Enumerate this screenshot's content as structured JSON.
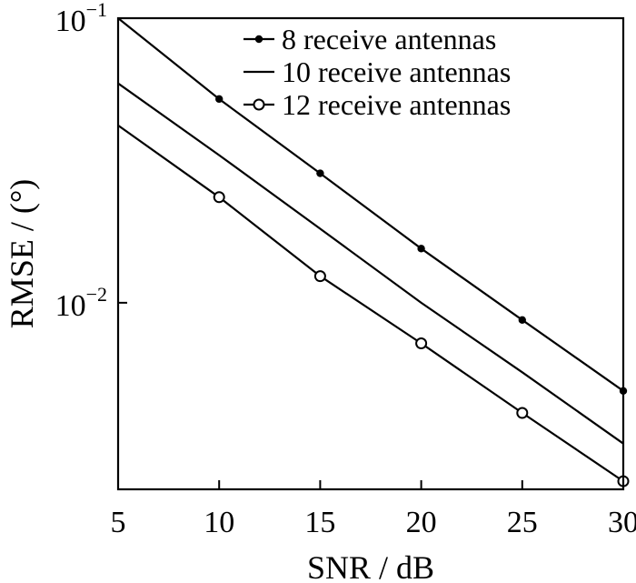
{
  "chart_data": {
    "type": "line",
    "xlabel": "SNR / dB",
    "ylabel": "RMSE / (°)",
    "x_scale": "linear",
    "y_scale": "log",
    "xlim": [
      5,
      30
    ],
    "ylim": [
      0.00221,
      0.1
    ],
    "x_ticks": [
      5,
      10,
      15,
      20,
      25,
      30
    ],
    "x_tick_labels": [
      "5",
      "10",
      "15",
      "20",
      "25",
      "30"
    ],
    "y_ticks": [
      {
        "value": 0.1,
        "base": "10",
        "exp": "−1"
      },
      {
        "value": 0.01,
        "base": "10",
        "exp": "−2"
      }
    ],
    "grid": false,
    "legend_position": "top-right",
    "series": [
      {
        "name": "8 receive antennas",
        "marker": "dot",
        "x": [
          5,
          10,
          15,
          20,
          25,
          30
        ],
        "y": [
          0.1,
          0.052,
          0.0285,
          0.0155,
          0.0087,
          0.0049
        ],
        "marker_x": [
          10,
          15,
          20,
          25,
          30
        ],
        "marker_y": [
          0.052,
          0.0285,
          0.0155,
          0.0087,
          0.0049
        ]
      },
      {
        "name": "10 receive antennas",
        "marker": "none",
        "x": [
          5,
          10,
          15,
          20,
          25,
          30
        ],
        "y": [
          0.059,
          0.033,
          0.0182,
          0.01,
          0.0057,
          0.0032
        ],
        "marker_x": [],
        "marker_y": []
      },
      {
        "name": "12 receive antennas",
        "marker": "circle",
        "x": [
          5,
          10,
          15,
          20,
          25,
          30
        ],
        "y": [
          0.042,
          0.0235,
          0.0124,
          0.0072,
          0.0041,
          0.00236
        ],
        "marker_x": [
          10,
          15,
          20,
          25,
          30
        ],
        "marker_y": [
          0.0235,
          0.0124,
          0.0072,
          0.0041,
          0.00236
        ]
      }
    ]
  }
}
